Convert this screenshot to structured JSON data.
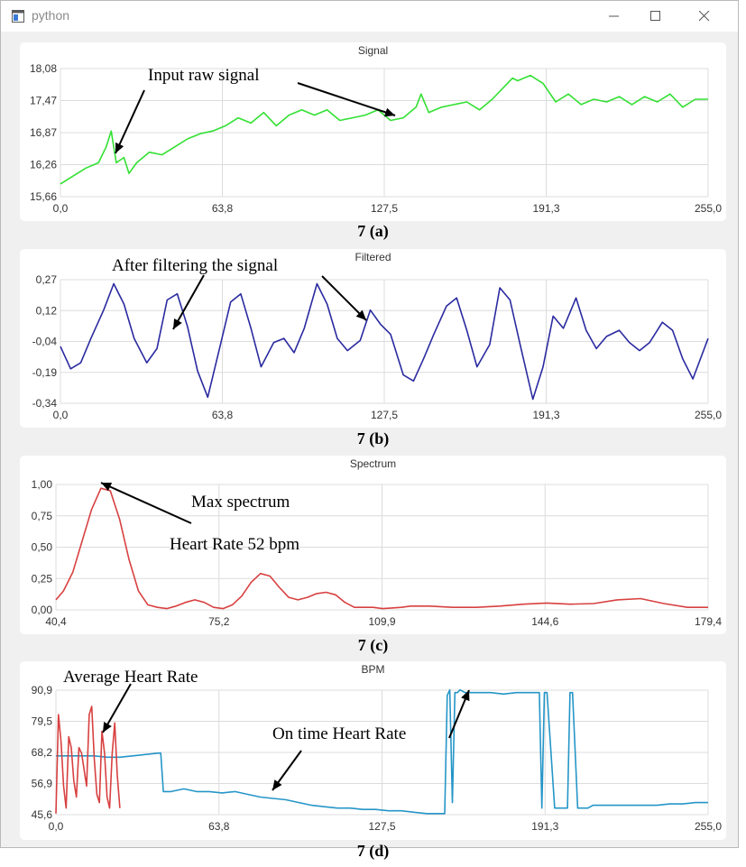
{
  "window": {
    "title": "python",
    "icon": "python-window-icon",
    "controls": [
      "minimize-icon",
      "maximize-icon",
      "close-icon"
    ]
  },
  "colors": {
    "signal": "#33e033",
    "filtered": "#2a2aa0",
    "spectrum": "#d84040",
    "bpm_on_time": "#2596c8",
    "bpm_average": "#d84040",
    "panel_bg": "#ffffff",
    "window_bg": "#f0f0f0",
    "grid": "#dcdcdc"
  },
  "captions": [
    "7 (a)",
    "7 (b)",
    "7 (c)",
    "7 (d)"
  ],
  "annotations": {
    "raw": "Input raw signal",
    "filtered": "After filtering the signal",
    "max": "Max spectrum",
    "hr": "Heart Rate 52 bpm",
    "avg": "Average Heart Rate",
    "ontime": "On time Heart Rate"
  },
  "chart_data": [
    {
      "type": "line",
      "title": "Signal",
      "xlim": [
        0,
        255
      ],
      "ylim": [
        15.66,
        18.08
      ],
      "xticks": [
        "0,0",
        "63,8",
        "127,5",
        "191,3",
        "255,0"
      ],
      "yticks": [
        "18,08",
        "17,47",
        "16,87",
        "16,26",
        "15,66"
      ],
      "grid": true,
      "series": [
        {
          "x": [
            0,
            5,
            10,
            15,
            18,
            20,
            22,
            25,
            27,
            30,
            35,
            40,
            45,
            50,
            55,
            60,
            65,
            70,
            75,
            80,
            85,
            90,
            95,
            100,
            105,
            110,
            115,
            120,
            125,
            130,
            135,
            140,
            142,
            145,
            150,
            155,
            160,
            165,
            170,
            175,
            178,
            180,
            185,
            190,
            195,
            200,
            205,
            210,
            215,
            220,
            225,
            230,
            235,
            240,
            245,
            250,
            255
          ],
          "y": [
            15.9,
            16.05,
            16.2,
            16.3,
            16.6,
            16.9,
            16.3,
            16.4,
            16.1,
            16.3,
            16.5,
            16.45,
            16.6,
            16.75,
            16.85,
            16.9,
            17.0,
            17.15,
            17.05,
            17.25,
            17.0,
            17.2,
            17.3,
            17.2,
            17.3,
            17.1,
            17.15,
            17.2,
            17.3,
            17.1,
            17.15,
            17.35,
            17.6,
            17.25,
            17.35,
            17.4,
            17.45,
            17.3,
            17.5,
            17.75,
            17.9,
            17.85,
            17.95,
            17.8,
            17.45,
            17.6,
            17.4,
            17.5,
            17.45,
            17.55,
            17.4,
            17.55,
            17.45,
            17.6,
            17.35,
            17.5,
            17.5
          ]
        }
      ]
    },
    {
      "type": "line",
      "title": "Filtered",
      "xlim": [
        0,
        255
      ],
      "ylim": [
        -0.34,
        0.27
      ],
      "xticks": [
        "0,0",
        "63,8",
        "127,5",
        "191,3",
        "255,0"
      ],
      "yticks": [
        "0,27",
        "0,12",
        "-0,04",
        "-0,19",
        "-0,34"
      ],
      "grid": true,
      "series": [
        {
          "x": [
            0,
            4,
            8,
            12,
            17,
            21,
            25,
            29,
            34,
            38,
            42,
            46,
            50,
            54,
            58,
            63,
            67,
            71,
            75,
            79,
            84,
            88,
            92,
            96,
            101,
            105,
            109,
            113,
            118,
            122,
            126,
            130,
            135,
            139,
            143,
            147,
            152,
            156,
            160,
            164,
            169,
            173,
            177,
            181,
            186,
            190,
            194,
            198,
            203,
            207,
            211,
            215,
            220,
            224,
            228,
            232,
            237,
            241,
            245,
            249,
            255
          ],
          "y": [
            -0.06,
            -0.17,
            -0.14,
            -0.02,
            0.12,
            0.25,
            0.15,
            -0.02,
            -0.14,
            -0.07,
            0.17,
            0.2,
            0.04,
            -0.18,
            -0.31,
            -0.05,
            0.16,
            0.2,
            0.03,
            -0.16,
            -0.04,
            -0.02,
            -0.09,
            0.03,
            0.25,
            0.15,
            -0.02,
            -0.08,
            -0.03,
            0.12,
            0.05,
            0.0,
            -0.2,
            -0.23,
            -0.12,
            0.0,
            0.14,
            0.18,
            0.02,
            -0.16,
            -0.05,
            0.23,
            0.17,
            -0.05,
            -0.32,
            -0.16,
            0.09,
            0.03,
            0.18,
            0.02,
            -0.07,
            -0.01,
            0.02,
            -0.04,
            -0.08,
            -0.04,
            0.06,
            0.02,
            -0.12,
            -0.22,
            -0.02
          ]
        }
      ]
    },
    {
      "type": "line",
      "title": "Spectrum",
      "xlim": [
        40.4,
        179.4
      ],
      "ylim": [
        0,
        1
      ],
      "xticks": [
        "40,4",
        "75,2",
        "109,9",
        "144,6",
        "179,4"
      ],
      "yticks": [
        "1,00",
        "0,75",
        "0,50",
        "0,25",
        "0,00"
      ],
      "grid": true,
      "series": [
        {
          "x": [
            40.4,
            42,
            44,
            46,
            48,
            50,
            52,
            54,
            56,
            58,
            60,
            62,
            64,
            66,
            68,
            70,
            72,
            74,
            76,
            78,
            80,
            82,
            84,
            86,
            88,
            90,
            92,
            94,
            96,
            98,
            100,
            102,
            104,
            106,
            108,
            110,
            112,
            114,
            116,
            120,
            125,
            130,
            135,
            140,
            145,
            150,
            155,
            160,
            165,
            170,
            175,
            179.4
          ],
          "y": [
            0.08,
            0.15,
            0.3,
            0.55,
            0.8,
            0.97,
            0.95,
            0.72,
            0.4,
            0.15,
            0.04,
            0.02,
            0.01,
            0.03,
            0.06,
            0.08,
            0.06,
            0.02,
            0.01,
            0.04,
            0.11,
            0.22,
            0.29,
            0.27,
            0.18,
            0.1,
            0.08,
            0.1,
            0.13,
            0.14,
            0.12,
            0.06,
            0.02,
            0.02,
            0.02,
            0.01,
            0.015,
            0.02,
            0.03,
            0.03,
            0.02,
            0.02,
            0.03,
            0.045,
            0.055,
            0.045,
            0.05,
            0.08,
            0.09,
            0.05,
            0.02,
            0.02
          ]
        }
      ]
    },
    {
      "type": "line",
      "title": "BPM",
      "xlim": [
        0,
        255
      ],
      "ylim": [
        45.6,
        90.9
      ],
      "xticks": [
        "0,0",
        "63,8",
        "127,5",
        "191,3",
        "255,0"
      ],
      "yticks": [
        "90,9",
        "79,5",
        "68,2",
        "56,9",
        "45,6"
      ],
      "grid": true,
      "series": [
        {
          "x": [
            0,
            5,
            10,
            15,
            20,
            25,
            30,
            35,
            40,
            41,
            42,
            45,
            50,
            55,
            60,
            65,
            70,
            75,
            80,
            85,
            90,
            95,
            100,
            105,
            110,
            115,
            120,
            125,
            130,
            135,
            140,
            145,
            150,
            152,
            153,
            154,
            155,
            156,
            157,
            158,
            160,
            165,
            170,
            175,
            180,
            185,
            188,
            189,
            190,
            191,
            192,
            195,
            198,
            200,
            201,
            202,
            204,
            206,
            207,
            208,
            210,
            215,
            220,
            225,
            230,
            235,
            240,
            245,
            250,
            255
          ],
          "y": [
            67,
            67,
            67,
            67,
            66.5,
            66.5,
            67,
            67.5,
            68,
            68,
            54,
            54,
            55,
            54,
            54,
            53.5,
            54,
            53,
            52,
            51.5,
            51,
            50,
            49,
            48.5,
            48,
            48,
            47.5,
            47.5,
            47,
            47,
            46.5,
            46,
            46,
            46,
            89,
            91,
            50,
            90,
            90,
            91,
            90,
            90,
            90,
            89.5,
            90,
            90,
            90,
            90,
            48,
            90,
            90,
            48,
            48,
            48,
            90,
            90,
            48,
            48,
            48,
            48,
            49,
            49,
            49,
            49,
            49,
            49,
            49.5,
            49.5,
            50,
            50
          ]
        },
        {
          "x": [
            0,
            1,
            2,
            3,
            4,
            5,
            6,
            7,
            8,
            9,
            10,
            11,
            12,
            13,
            14,
            15,
            16,
            17,
            18,
            19,
            20,
            21,
            22,
            23,
            24,
            25
          ],
          "y": [
            46,
            82,
            72,
            56,
            48,
            74,
            70,
            58,
            52,
            70,
            68,
            62,
            56,
            82,
            85,
            66,
            53,
            50,
            76,
            68,
            52,
            48,
            68,
            79,
            60,
            48
          ]
        }
      ]
    }
  ]
}
